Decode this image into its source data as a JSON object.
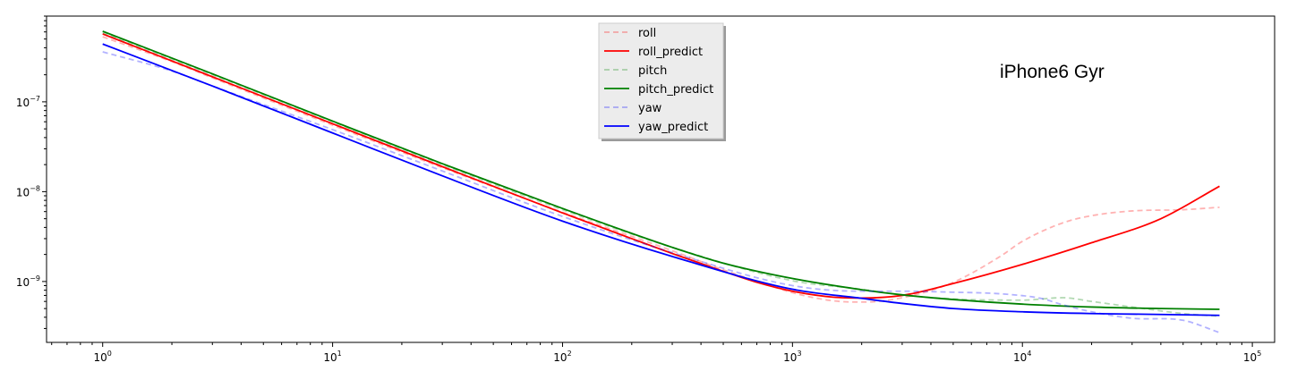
{
  "chart_data": {
    "type": "line",
    "title": "",
    "xlabel": "",
    "ylabel": "",
    "x_scale": "log",
    "y_scale": "log",
    "xlim": [
      0.57,
      125000
    ],
    "ylim": [
      2.1e-10,
      9e-07
    ],
    "x_major_ticks": [
      {
        "value": 1,
        "base": "10",
        "exp": "0"
      },
      {
        "value": 10,
        "base": "10",
        "exp": "1"
      },
      {
        "value": 100,
        "base": "10",
        "exp": "2"
      },
      {
        "value": 1000,
        "base": "10",
        "exp": "3"
      },
      {
        "value": 10000,
        "base": "10",
        "exp": "4"
      },
      {
        "value": 100000,
        "base": "10",
        "exp": "5"
      }
    ],
    "y_major_ticks": [
      {
        "value": 1e-07,
        "base": "10",
        "exp": "−7"
      },
      {
        "value": 1e-08,
        "base": "10",
        "exp": "−8"
      },
      {
        "value": 1e-09,
        "base": "10",
        "exp": "−9"
      }
    ],
    "grid": false,
    "legend_position": "top-center",
    "annotation": "iPhone6 Gyr",
    "series": [
      {
        "name": "roll",
        "color": "#ff0000",
        "dash": "dashed",
        "opacity": 0.3,
        "points": [
          [
            1,
            5.3e-07
          ],
          [
            2,
            2.8e-07
          ],
          [
            3,
            1.85e-07
          ],
          [
            10,
            5.5e-08
          ],
          [
            30,
            1.85e-08
          ],
          [
            100,
            5.9e-09
          ],
          [
            300,
            2.2e-09
          ],
          [
            500,
            1.35e-09
          ],
          [
            800,
            9e-10
          ],
          [
            1000,
            7.5e-10
          ],
          [
            1500,
            6.1e-10
          ],
          [
            2000,
            5.9e-10
          ],
          [
            3000,
            6.6e-10
          ],
          [
            5000,
            9.8e-10
          ],
          [
            8000,
            1.9e-09
          ],
          [
            10000,
            2.8e-09
          ],
          [
            15000,
            4.5e-09
          ],
          [
            20000,
            5.4e-09
          ],
          [
            30000,
            6.1e-09
          ],
          [
            50000,
            6.3e-09
          ],
          [
            72000,
            6.7e-09
          ]
        ]
      },
      {
        "name": "roll_predict",
        "color": "#ff0000",
        "dash": "solid",
        "opacity": 1,
        "points": [
          [
            1,
            5.7e-07
          ],
          [
            3,
            1.9e-07
          ],
          [
            10,
            5.7e-08
          ],
          [
            30,
            1.9e-08
          ],
          [
            100,
            5.8e-09
          ],
          [
            200,
            3e-09
          ],
          [
            300,
            2.05e-09
          ],
          [
            500,
            1.3e-09
          ],
          [
            700,
            9.8e-10
          ],
          [
            1000,
            7.8e-10
          ],
          [
            1500,
            6.7e-10
          ],
          [
            2000,
            6.55e-10
          ],
          [
            3000,
            7e-10
          ],
          [
            5000,
            9.5e-10
          ],
          [
            10000,
            1.55e-09
          ],
          [
            20000,
            2.7e-09
          ],
          [
            40000,
            5e-09
          ],
          [
            72000,
            1.15e-08
          ]
        ]
      },
      {
        "name": "pitch",
        "color": "#008000",
        "dash": "dashed",
        "opacity": 0.3,
        "points": [
          [
            1,
            5.9e-07
          ],
          [
            3,
            2e-07
          ],
          [
            10,
            6e-08
          ],
          [
            30,
            2e-08
          ],
          [
            100,
            6.3e-09
          ],
          [
            300,
            2.4e-09
          ],
          [
            1000,
            1.02e-09
          ],
          [
            2000,
            8.2e-10
          ],
          [
            3000,
            7.1e-10
          ],
          [
            5000,
            6.4e-10
          ],
          [
            10000,
            6.2e-10
          ],
          [
            15000,
            6.6e-10
          ],
          [
            20000,
            6e-10
          ],
          [
            30000,
            5.2e-10
          ],
          [
            50000,
            4.4e-10
          ],
          [
            72000,
            4.1e-10
          ]
        ]
      },
      {
        "name": "pitch_predict",
        "color": "#008000",
        "dash": "solid",
        "opacity": 1,
        "points": [
          [
            1,
            6.1e-07
          ],
          [
            3,
            2.05e-07
          ],
          [
            10,
            6.1e-08
          ],
          [
            30,
            2.05e-08
          ],
          [
            100,
            6.5e-09
          ],
          [
            300,
            2.4e-09
          ],
          [
            500,
            1.6e-09
          ],
          [
            1000,
            1.08e-09
          ],
          [
            2000,
            8.1e-10
          ],
          [
            3000,
            7.1e-10
          ],
          [
            5000,
            6.3e-10
          ],
          [
            10000,
            5.6e-10
          ],
          [
            20000,
            5.2e-10
          ],
          [
            40000,
            5e-10
          ],
          [
            72000,
            4.9e-10
          ]
        ]
      },
      {
        "name": "yaw",
        "color": "#0000ff",
        "dash": "dashed",
        "opacity": 0.3,
        "points": [
          [
            1,
            3.6e-07
          ],
          [
            2,
            2.2e-07
          ],
          [
            3,
            1.5e-07
          ],
          [
            10,
            4.9e-08
          ],
          [
            30,
            1.7e-08
          ],
          [
            100,
            5.3e-09
          ],
          [
            300,
            2.1e-09
          ],
          [
            1000,
            9e-10
          ],
          [
            2000,
            7.8e-10
          ],
          [
            3000,
            7.8e-10
          ],
          [
            5000,
            7.6e-10
          ],
          [
            8000,
            7.3e-10
          ],
          [
            12000,
            6.5e-10
          ],
          [
            15000,
            5.5e-10
          ],
          [
            20000,
            4.6e-10
          ],
          [
            30000,
            3.9e-10
          ],
          [
            50000,
            3.7e-10
          ],
          [
            72000,
            2.7e-10
          ]
        ]
      },
      {
        "name": "yaw_predict",
        "color": "#0000ff",
        "dash": "solid",
        "opacity": 1,
        "points": [
          [
            1,
            4.4e-07
          ],
          [
            3,
            1.5e-07
          ],
          [
            10,
            4.5e-08
          ],
          [
            30,
            1.5e-08
          ],
          [
            100,
            4.7e-09
          ],
          [
            300,
            1.9e-09
          ],
          [
            1000,
            8.2e-10
          ],
          [
            2000,
            6.5e-10
          ],
          [
            3000,
            5.7e-10
          ],
          [
            5000,
            5e-10
          ],
          [
            10000,
            4.6e-10
          ],
          [
            20000,
            4.4e-10
          ],
          [
            40000,
            4.3e-10
          ],
          [
            72000,
            4.2e-10
          ]
        ]
      }
    ]
  }
}
